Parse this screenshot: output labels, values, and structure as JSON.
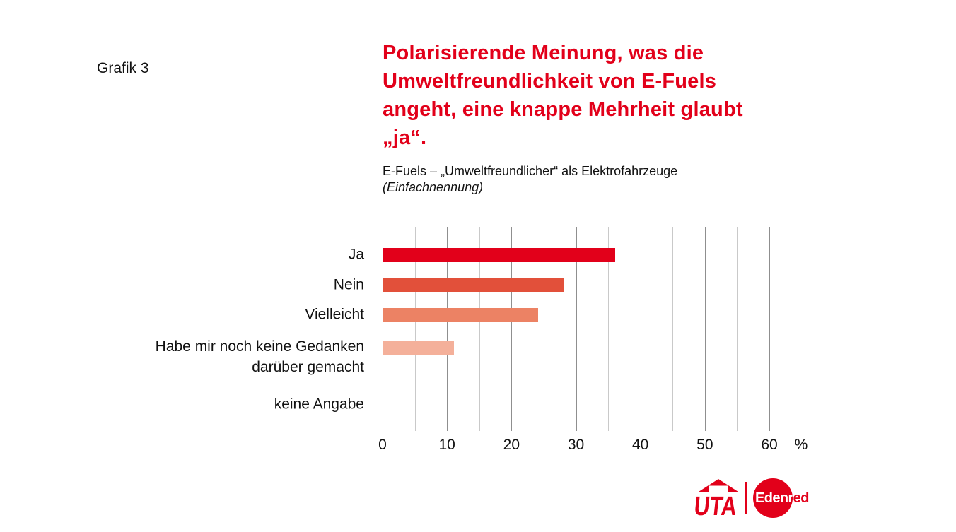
{
  "figure_label": "Grafik 3",
  "title": "Polarisierende Meinung, was die Umweltfreundlichkeit von E-Fuels angeht, eine knappe Mehrheit glaubt „ja“.",
  "subtitle": "E-Fuels – „Umweltfreundlicher“ als Elektrofahrzeuge",
  "subtitle_note": "(Einfachnennung)",
  "colors": {
    "brand_red": "#e2001a",
    "grid_major": "#8f8f8f",
    "grid_minor": "#c9c9c9",
    "text": "#111111"
  },
  "chart_data": {
    "type": "bar",
    "orientation": "horizontal",
    "title": "E-Fuels – „Umweltfreundlicher“ als Elektrofahrzeuge (Einfachnennung)",
    "unit": "%",
    "categories": [
      "Ja",
      "Nein",
      "Vielleicht",
      "Habe mir noch keine Gedanken\ndarüber gemacht",
      "keine Angabe"
    ],
    "values": [
      36,
      28,
      24,
      11,
      0
    ],
    "bar_colors": [
      "#e2001a",
      "#e2503a",
      "#ec8264",
      "#f4b09a",
      null
    ],
    "xlim": [
      0,
      60
    ],
    "x_ticks": [
      0,
      10,
      20,
      30,
      40,
      50,
      60
    ],
    "x_minor_step": 5,
    "x_axis_suffix": "%",
    "grid": "vertical-only",
    "legend": "none"
  },
  "logos": {
    "uta_label": "UTA",
    "edenred_label": "Edenred"
  }
}
